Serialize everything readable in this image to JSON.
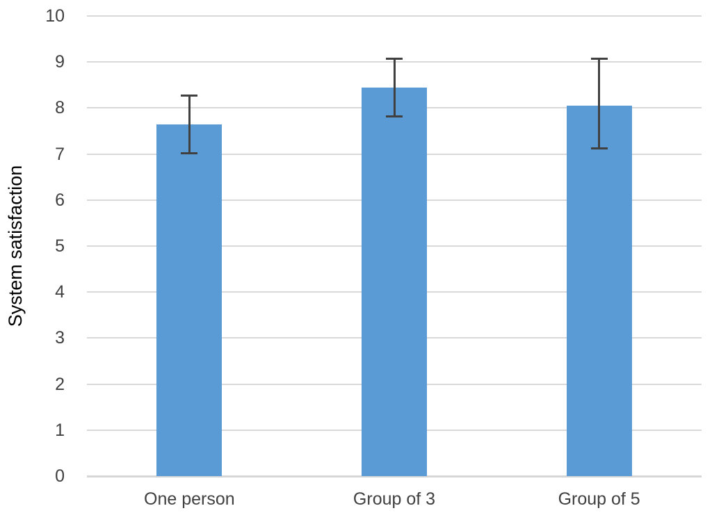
{
  "chart_data": {
    "type": "bar",
    "title": "",
    "xlabel": "",
    "ylabel": "System satisfaction",
    "categories": [
      "One person",
      "Group of 3",
      "Group of 5"
    ],
    "values": [
      7.65,
      8.45,
      8.05
    ],
    "error_low": [
      7.0,
      7.8,
      7.1
    ],
    "error_high": [
      8.3,
      9.1,
      9.1
    ],
    "ylim": [
      0,
      10
    ],
    "yticks": [
      0,
      1,
      2,
      3,
      4,
      5,
      6,
      7,
      8,
      9,
      10
    ],
    "grid": true,
    "legend": "none",
    "bar_color": "#5B9BD5",
    "error_bar_color": "#404040",
    "gridline_color": "#D9D9D9",
    "axis_line_color": "#D6D6D6",
    "text_color": "#404040"
  }
}
